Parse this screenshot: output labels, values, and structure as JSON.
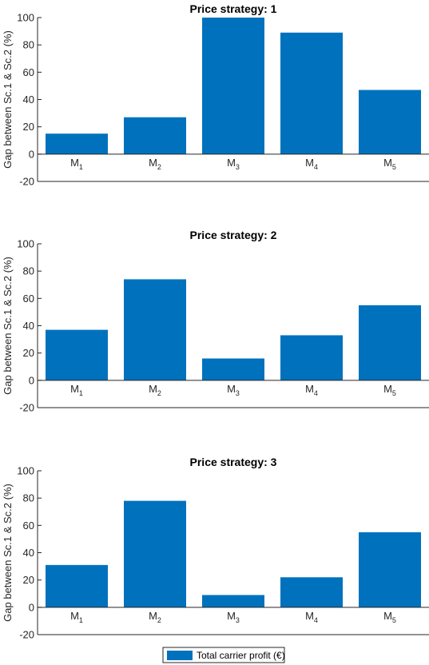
{
  "chart_data": [
    {
      "type": "bar",
      "title": "Price strategy: 1",
      "ylabel": "Gap between Sc.1 & Sc.2 (%)",
      "xlabel": "",
      "categories": [
        {
          "main": "M",
          "sub": "1"
        },
        {
          "main": "M",
          "sub": "2"
        },
        {
          "main": "M",
          "sub": "3"
        },
        {
          "main": "M",
          "sub": "4"
        },
        {
          "main": "M",
          "sub": "5"
        }
      ],
      "series": [
        {
          "name": "Total carrier profit (€)",
          "values": [
            15,
            27,
            100,
            89,
            47
          ]
        }
      ],
      "ylim": [
        -20,
        100
      ],
      "yticks": [
        "-20",
        "0",
        "20",
        "40",
        "60",
        "80",
        "100"
      ],
      "grid": false
    },
    {
      "type": "bar",
      "title": "Price strategy: 2",
      "ylabel": "Gap between Sc.1 & Sc.2 (%)",
      "xlabel": "",
      "categories": [
        {
          "main": "M",
          "sub": "1"
        },
        {
          "main": "M",
          "sub": "2"
        },
        {
          "main": "M",
          "sub": "3"
        },
        {
          "main": "M",
          "sub": "4"
        },
        {
          "main": "M",
          "sub": "5"
        }
      ],
      "series": [
        {
          "name": "Total carrier profit (€)",
          "values": [
            37,
            74,
            16,
            33,
            55
          ]
        }
      ],
      "ylim": [
        -20,
        100
      ],
      "yticks": [
        "-20",
        "0",
        "20",
        "40",
        "60",
        "80",
        "100"
      ],
      "grid": false
    },
    {
      "type": "bar",
      "title": "Price strategy: 3",
      "ylabel": "Gap between Sc.1 & Sc.2 (%)",
      "xlabel": "",
      "categories": [
        {
          "main": "M",
          "sub": "1"
        },
        {
          "main": "M",
          "sub": "2"
        },
        {
          "main": "M",
          "sub": "3"
        },
        {
          "main": "M",
          "sub": "4"
        },
        {
          "main": "M",
          "sub": "5"
        }
      ],
      "series": [
        {
          "name": "Total carrier profit (€)",
          "values": [
            31,
            78,
            9,
            22,
            55
          ]
        }
      ],
      "ylim": [
        -20,
        100
      ],
      "yticks": [
        "-20",
        "0",
        "20",
        "40",
        "60",
        "80",
        "100"
      ],
      "grid": false
    }
  ],
  "legend": {
    "placement": "bottom-center",
    "label": "Total carrier profit (€)"
  },
  "colors": {
    "bar": "#0072BD",
    "axis": "#262626"
  }
}
